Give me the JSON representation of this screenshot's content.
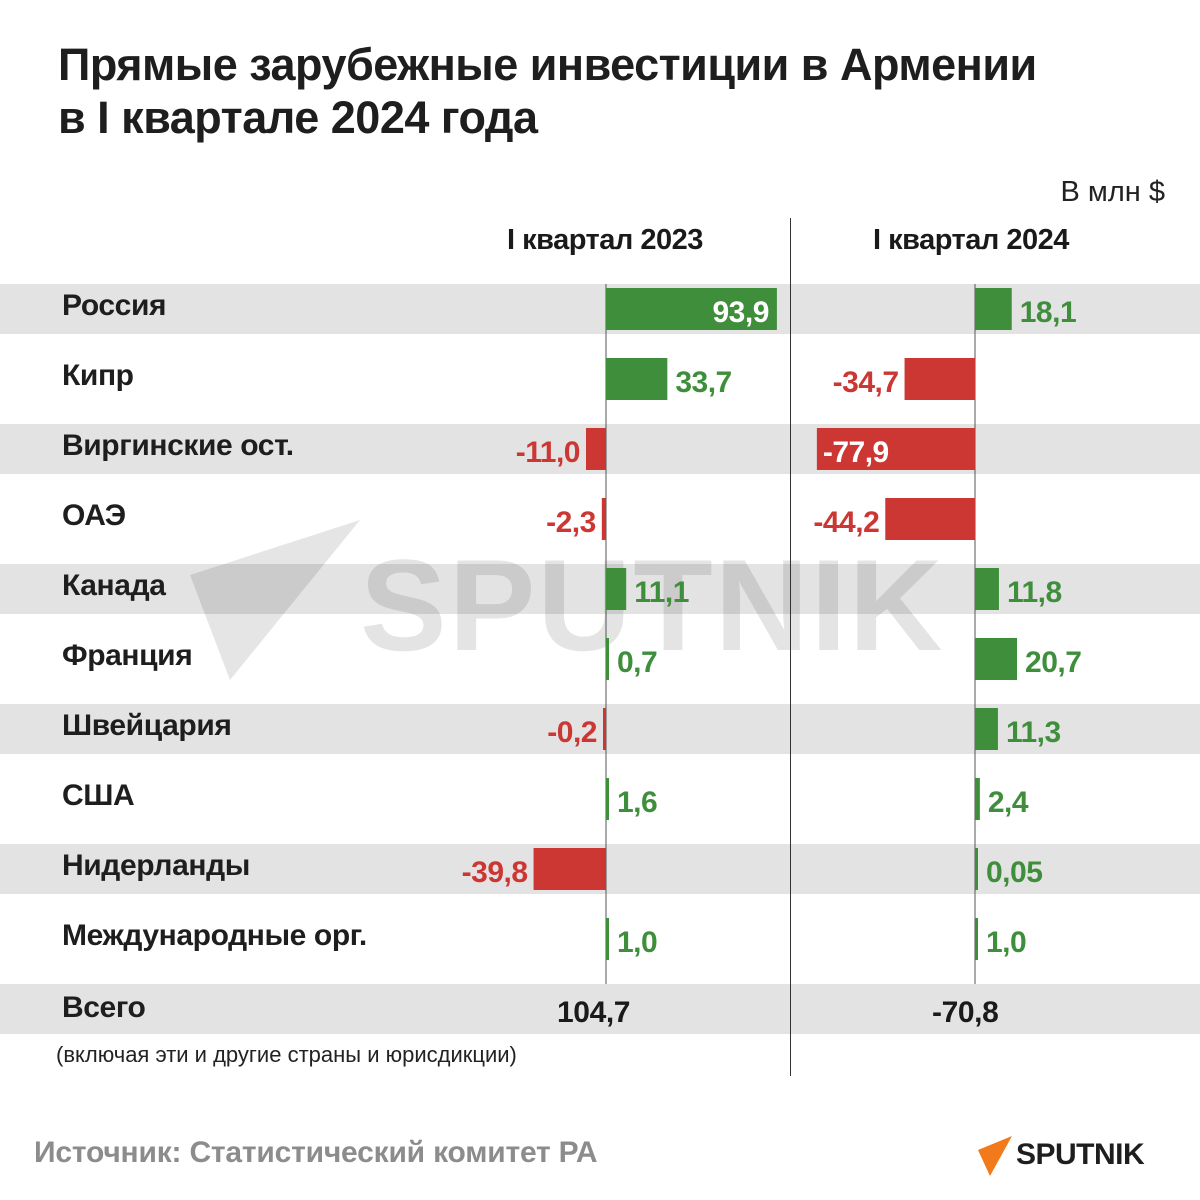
{
  "title_line1": "Прямые зарубежные инвестиции в Армении",
  "title_line2": "в I квартале 2024 года",
  "unit": "В млн $",
  "source": "Источник: Статистический комитет РА",
  "brand": "SPUTNIK",
  "watermark": "SPUTNIK",
  "colors": {
    "positive": "#3f8e3b",
    "negative": "#cc3633",
    "stripe": "#e3e3e3"
  },
  "chart_data": {
    "type": "bar",
    "orientation": "horizontal",
    "unit": "В млн $",
    "categories": [
      "Россия",
      "Кипр",
      "Виргинские ост.",
      "ОАЭ",
      "Канада",
      "Франция",
      "Швейцария",
      "США",
      "Нидерланды",
      "Международные орг."
    ],
    "series": [
      {
        "name": "I квартал 2023",
        "values": [
          93.9,
          33.7,
          -11.0,
          -2.3,
          11.1,
          0.7,
          -0.2,
          1.6,
          -39.8,
          1.0
        ],
        "labels": [
          "93,9",
          "33,7",
          "-11,0",
          "-2,3",
          "11,1",
          "0,7",
          "-0,2",
          "1,6",
          "-39,8",
          "1,0"
        ],
        "total": 104.7,
        "total_label": "104,7"
      },
      {
        "name": "I квартал 2024",
        "values": [
          18.1,
          -34.7,
          -77.9,
          -44.2,
          11.8,
          20.7,
          11.3,
          2.4,
          0.05,
          1.0
        ],
        "labels": [
          "18,1",
          "-34,7",
          "-77,9",
          "-44,2",
          "11,8",
          "20,7",
          "11,3",
          "2,4",
          "0,05",
          "1,0"
        ],
        "total": -70.8,
        "total_label": "-70,8"
      }
    ],
    "total_row_label": "Всего",
    "total_note": "(включая эти и другие страны и юрисдикции)"
  }
}
